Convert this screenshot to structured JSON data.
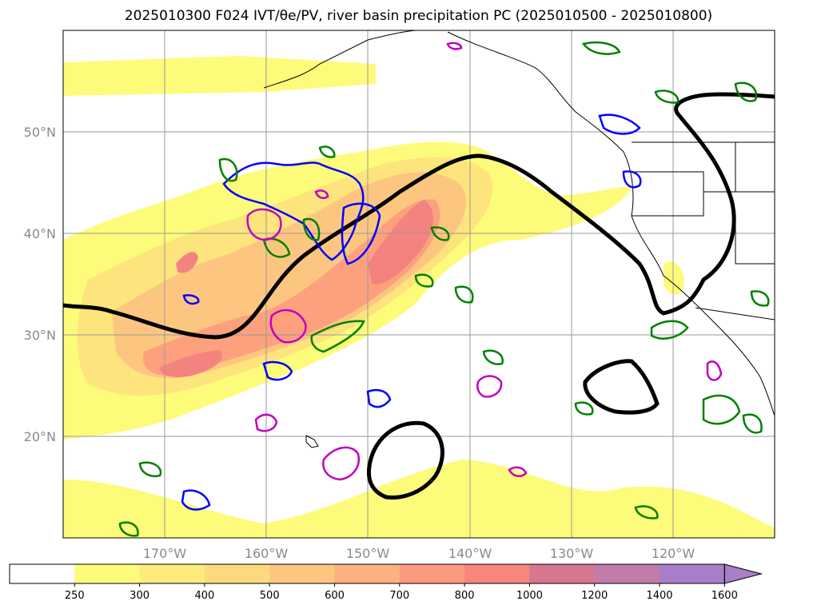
{
  "title": "2025010300 F024 IVT/θe/PV, river basin precipitation PC (2025010500 - 2025010800)",
  "map": {
    "lon_labels": [
      "170°W",
      "160°W",
      "150°W",
      "140°W",
      "130°W",
      "120°W"
    ],
    "lat_labels": [
      "50°N",
      "40°N",
      "30°N",
      "20°N"
    ]
  },
  "colorbar": {
    "levels": [
      "250",
      "300",
      "400",
      "500",
      "600",
      "700",
      "800",
      "1000",
      "1200",
      "1400",
      "1600"
    ],
    "colors": [
      "#ffffff",
      "#fdfb7a",
      "#fdeb7c",
      "#fdd97e",
      "#fdc680",
      "#fdb080",
      "#fd9a7e",
      "#f8857e",
      "#d7778f",
      "#c27cab",
      "#a87ec8"
    ],
    "extend": "max"
  },
  "contour_colors": {
    "ivt_fill": [
      "#fdfb7a",
      "#fde47c",
      "#fdc680",
      "#fca07e",
      "#f4837f",
      "#e07a8a"
    ],
    "theta_e": "#000000",
    "pv_positive": "#008000",
    "pv_negative": "#0000ff",
    "precip_pc": "#c000c0"
  }
}
